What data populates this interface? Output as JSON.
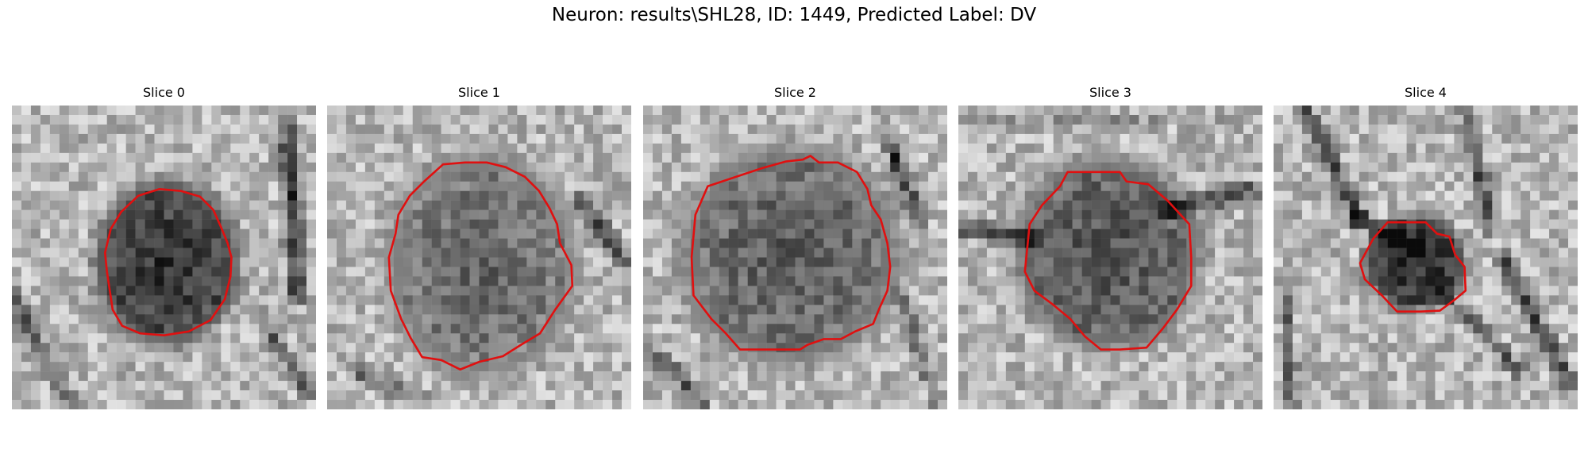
{
  "figure": {
    "suptitle": "Neuron: results\\SHL28, ID: 1449, Predicted Label: DV",
    "grid_size": 32,
    "contour_color": "#e01010",
    "colormap": "gray"
  },
  "panels": [
    {
      "title": "Slice 0"
    },
    {
      "title": "Slice 1"
    },
    {
      "title": "Slice 2"
    },
    {
      "title": "Slice 3"
    },
    {
      "title": "Slice 4"
    }
  ]
}
